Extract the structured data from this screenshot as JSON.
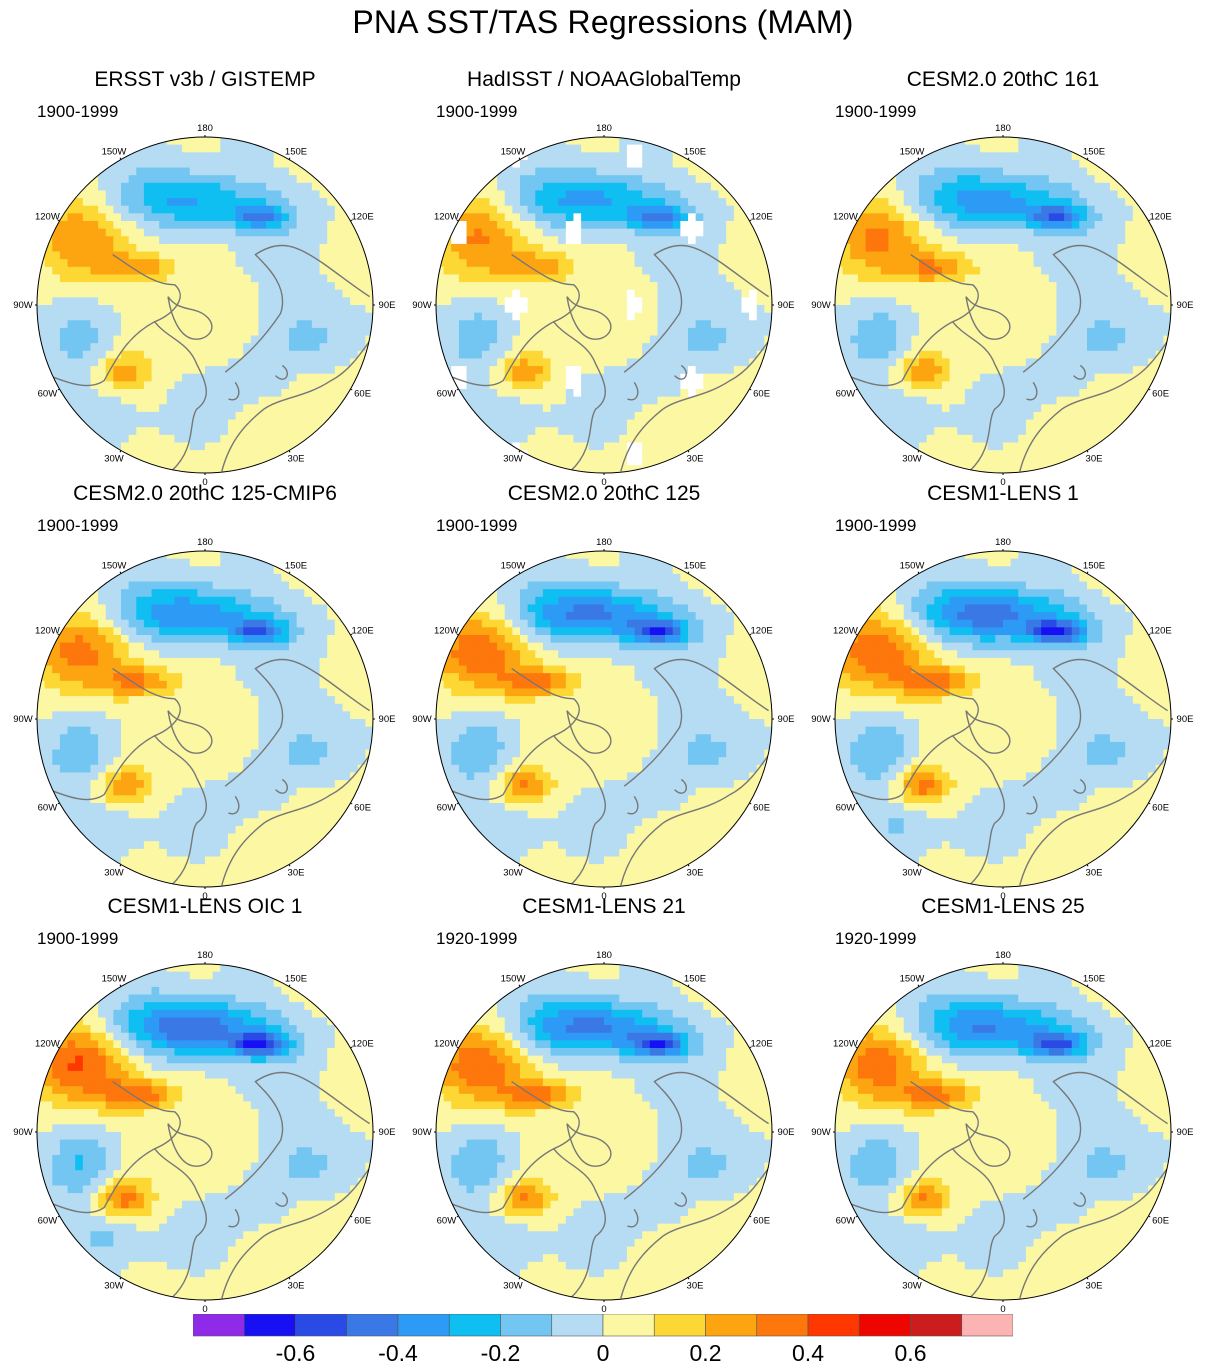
{
  "title": "PNA SST/TAS Regressions (MAM)",
  "colors": {
    "bins": [
      "#8f2be8",
      "#1610f2",
      "#2a4ae6",
      "#3a78e6",
      "#2d9bf5",
      "#10bff2",
      "#72c6f1",
      "#b5dcf3",
      "#fbf7a3",
      "#fdd734",
      "#fda510",
      "#fd770d",
      "#ff3700",
      "#ee0500",
      "#cb1d1d",
      "#fcb3b3"
    ],
    "coast": "#777777",
    "missing": "#ffffff"
  },
  "colorbar": {
    "ticks": [
      "-0.6",
      "-0.4",
      "-0.2",
      "0",
      "0.2",
      "0.4",
      "0.6"
    ],
    "tick_values": [
      -0.6,
      -0.4,
      -0.2,
      0,
      0.2,
      0.4,
      0.6
    ],
    "levels": [
      -0.7,
      -0.6,
      -0.5,
      -0.4,
      -0.3,
      -0.2,
      -0.1,
      0,
      0.1,
      0.2,
      0.3,
      0.4,
      0.5,
      0.6,
      0.7
    ]
  },
  "longitude_labels": {
    "0": "0",
    "30E": "30E",
    "60E": "60E",
    "90E": "90E",
    "120E": "120E",
    "150E": "150E",
    "180": "180",
    "150W": "150W",
    "120W": "120W",
    "90W": "90W",
    "60W": "60W",
    "30W": "30W"
  },
  "panels": [
    {
      "title": "ERSST v3b / GISTEMP",
      "years": "1900-1999",
      "has_gaps": false,
      "intensity": 0.75
    },
    {
      "title": "HadISST / NOAAGlobalTemp",
      "years": "1900-1999",
      "has_gaps": true,
      "intensity": 0.8
    },
    {
      "title": "CESM2.0 20thC 161",
      "years": "1900-1999",
      "has_gaps": false,
      "intensity": 0.85
    },
    {
      "title": "CESM2.0 20thC 125-CMIP6",
      "years": "1900-1999",
      "has_gaps": false,
      "intensity": 0.9
    },
    {
      "title": "CESM2.0 20thC 125",
      "years": "1900-1999",
      "has_gaps": false,
      "intensity": 1.0
    },
    {
      "title": "CESM1-LENS 1",
      "years": "1900-1999",
      "has_gaps": false,
      "intensity": 1.05
    },
    {
      "title": "CESM1-LENS OIC 1",
      "years": "1900-1999",
      "has_gaps": false,
      "intensity": 1.1
    },
    {
      "title": "CESM1-LENS 21",
      "years": "1920-1999",
      "has_gaps": false,
      "intensity": 1.0
    },
    {
      "title": "CESM1-LENS 25",
      "years": "1920-1999",
      "has_gaps": false,
      "intensity": 0.95
    }
  ]
}
